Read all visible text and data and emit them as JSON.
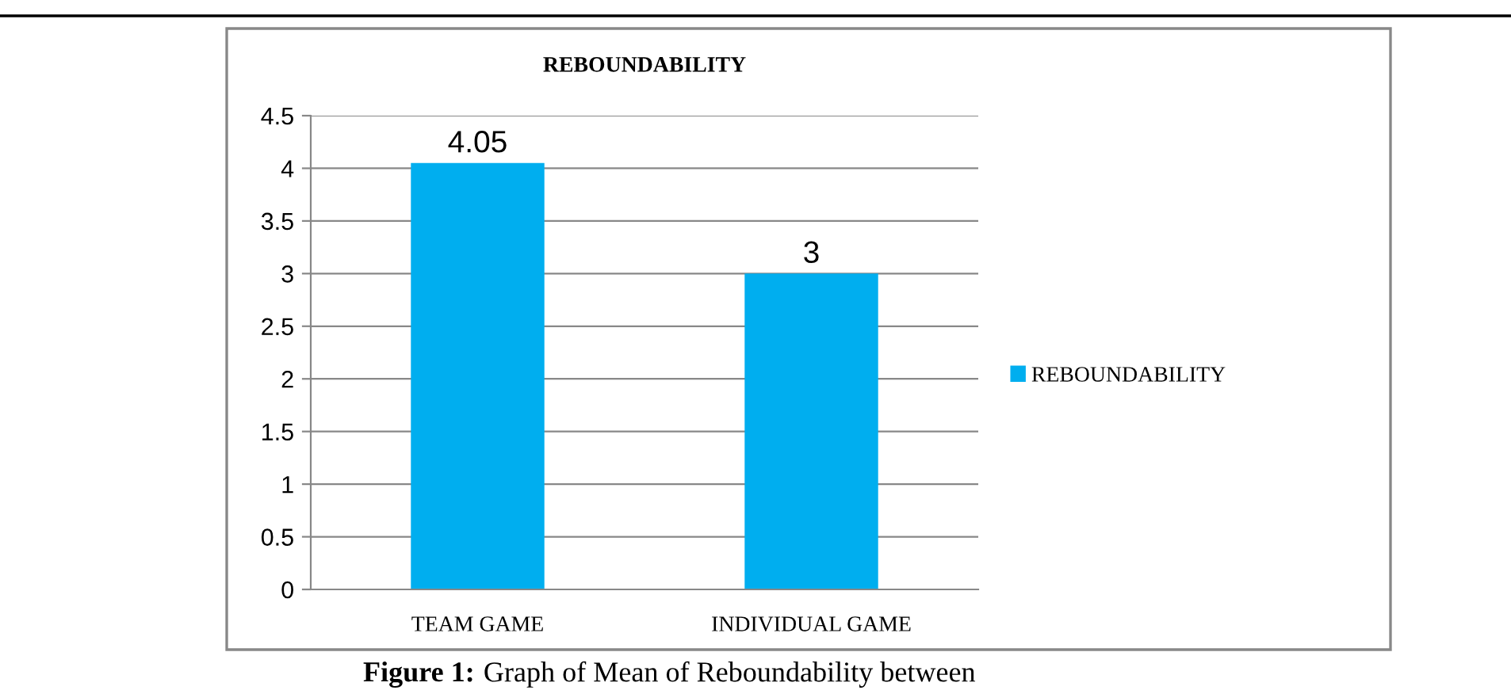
{
  "chart_data": {
    "type": "bar",
    "title": "REBOUNDABILITY",
    "categories": [
      "TEAM GAME",
      "INDIVIDUAL GAME"
    ],
    "series": [
      {
        "name": "REBOUNDABILITY",
        "color": "#00aeef",
        "values": [
          4.05,
          3
        ]
      }
    ],
    "data_labels": true,
    "ylim": [
      0,
      4.5
    ],
    "yticks": [
      0,
      0.5,
      1,
      1.5,
      2,
      2.5,
      3,
      3.5,
      4,
      4.5
    ],
    "grid": "y",
    "legend": "right",
    "annotations": [
      "Figure 1:",
      "Graph of Mean of Reboundability between"
    ]
  }
}
